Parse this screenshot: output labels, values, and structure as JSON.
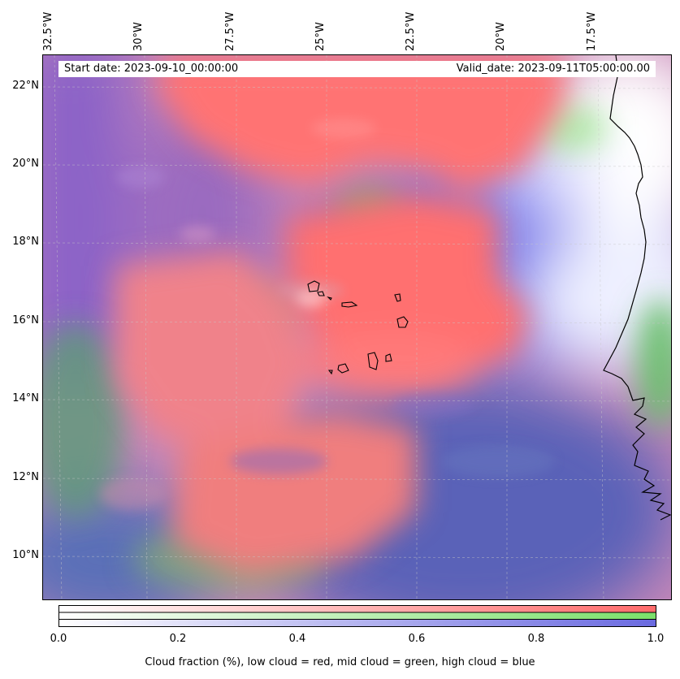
{
  "map": {
    "start_date_text": "Start date: 2023-09-10_00:00:00",
    "valid_date_text": "Valid_date: 2023-09-11T05:00:00.00",
    "longitude_labels": [
      "32.5°W",
      "30°W",
      "27.5°W",
      "25°W",
      "22.5°W",
      "20°W",
      "17.5°W"
    ],
    "latitude_labels": [
      "22°N",
      "20°N",
      "18°N",
      "16°N",
      "14°N",
      "12°N",
      "10°N"
    ],
    "extent": {
      "lon_min": -32.5,
      "lon_max": -15.3,
      "lat_min": 8.8,
      "lat_max": 22.8
    },
    "gridlines": true,
    "layers": [
      "low cloud",
      "mid cloud",
      "high cloud",
      "coastlines",
      "islands"
    ]
  },
  "colorbar": {
    "ticks": [
      "0.0",
      "0.2",
      "0.4",
      "0.6",
      "0.8",
      "1.0"
    ],
    "label": "Cloud fraction (%), low cloud = red, mid cloud = green, high cloud = blue",
    "colors": {
      "low": "#ff6b6b",
      "mid": "#7ae06a",
      "high": "#6a6ae0"
    }
  }
}
